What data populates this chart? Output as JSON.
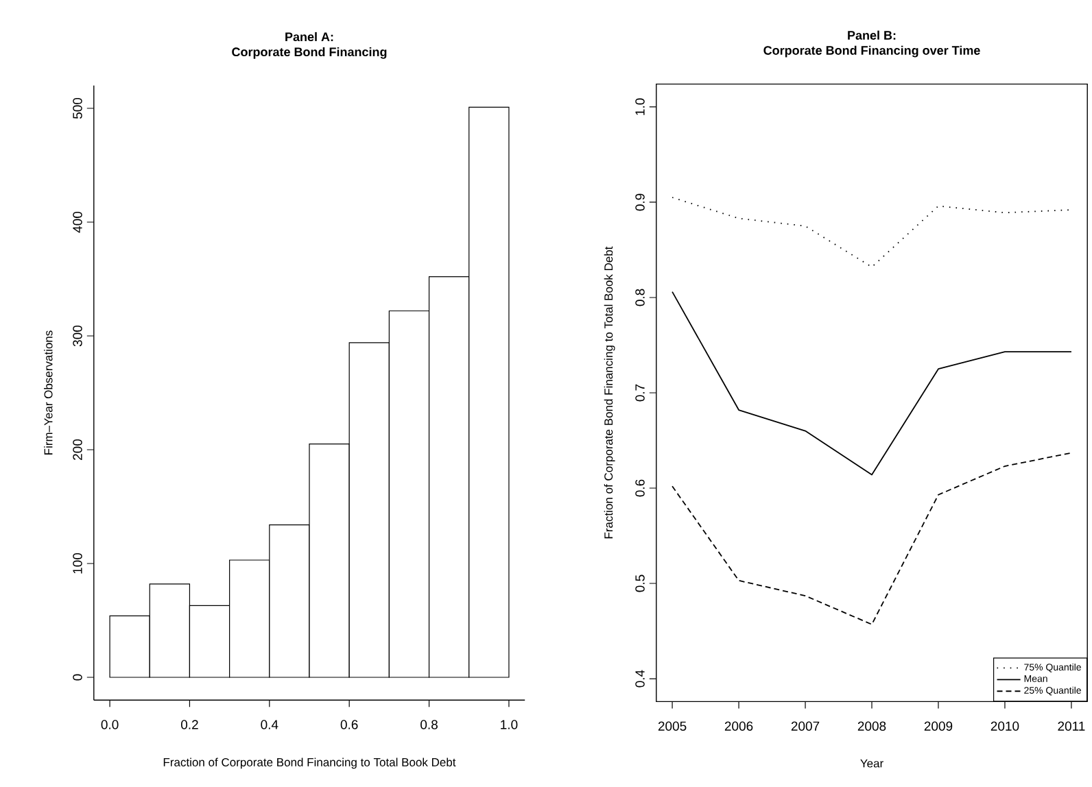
{
  "chart_data": [
    {
      "type": "histogram",
      "title": "Panel A:",
      "subtitle": "Corporate Bond Financing",
      "xlabel": "Fraction of Corporate Bond Financing to Total Book Debt",
      "ylabel": "Firm–Year Observations",
      "bins": [
        0,
        0.1,
        0.2,
        0.3,
        0.4,
        0.5,
        0.6,
        0.7,
        0.8,
        0.9,
        1.0
      ],
      "values": [
        54,
        82,
        63,
        103,
        134,
        205,
        294,
        322,
        352,
        501
      ],
      "color": "#ffffff",
      "xlim": [
        -0.04,
        1.04
      ],
      "ylim": [
        -20,
        520
      ],
      "xticks": [
        {
          "value": 0,
          "label": "0.0"
        },
        0.2,
        0.4,
        0.6,
        0.8,
        {
          "value": 1,
          "label": "1.0"
        }
      ],
      "yticks": [
        0,
        100,
        200,
        300,
        400,
        500
      ],
      "grid": false,
      "legend": false
    },
    {
      "type": "line",
      "title": "Panel B:",
      "subtitle": "Corporate Bond Financing over Time",
      "xlabel": "Year",
      "ylabel": "Fraction of Corporate Bond Financing to Total Book Debt",
      "x": [
        2005,
        2006,
        2007,
        2008,
        2009,
        2010,
        2011
      ],
      "series": [
        {
          "name": "75% Quantile",
          "color": "#000000",
          "line_style": "dotted",
          "values": [
            0.905,
            0.883,
            0.875,
            0.832,
            0.896,
            0.889,
            0.892
          ]
        },
        {
          "name": "Mean",
          "color": "#000000",
          "line_style": "solid",
          "values": [
            0.806,
            0.682,
            0.66,
            0.614,
            0.725,
            0.743,
            0.743
          ]
        },
        {
          "name": "25% Quantile",
          "color": "#000000",
          "line_style": "dashed",
          "values": [
            0.602,
            0.503,
            0.487,
            0.457,
            0.593,
            0.623,
            0.637
          ]
        }
      ],
      "xlim": [
        2004.76,
        2011.24
      ],
      "ylim": [
        0.376,
        1.024
      ],
      "xticks": [
        2005,
        2006,
        2007,
        2008,
        2009,
        2010,
        2011
      ],
      "yticks": [
        0.4,
        0.5,
        0.6,
        0.7,
        0.8,
        0.9,
        {
          "value": 1,
          "label": "1.0"
        }
      ],
      "grid": false,
      "legend": "bottom right",
      "marker": "none"
    }
  ]
}
